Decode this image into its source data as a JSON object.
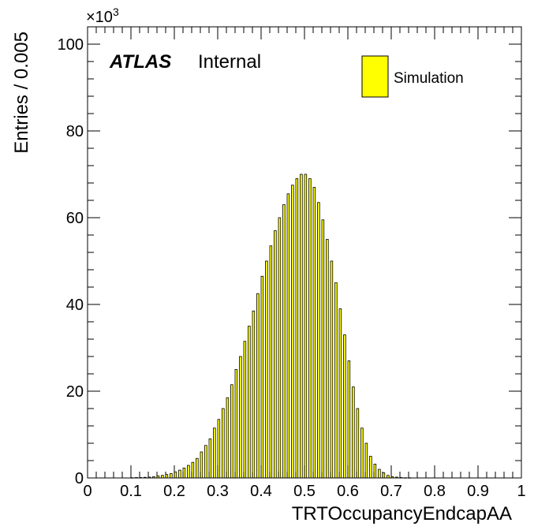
{
  "chart_data": {
    "type": "bar",
    "xlabel": "TRTOccupancyEndcapAA",
    "ylabel": "Entries / 0.005",
    "y_multiplier": "×10",
    "y_multiplier_exp": "3",
    "xlim": [
      0,
      1
    ],
    "ylim": [
      0,
      104
    ],
    "x_ticks": [
      "0",
      "0.1",
      "0.2",
      "0.3",
      "0.4",
      "0.5",
      "0.6",
      "0.7",
      "0.8",
      "0.9",
      "1"
    ],
    "y_ticks": [
      "0",
      "20",
      "40",
      "60",
      "80",
      "100"
    ],
    "atlas_label": "ATLAS",
    "atlas_status": "Internal",
    "legend_position": "top-right",
    "series": [
      {
        "name": "Simulation",
        "color": "#ffff00",
        "bin_width": 0.005,
        "x": [
          0.1,
          0.11,
          0.12,
          0.13,
          0.14,
          0.15,
          0.16,
          0.17,
          0.18,
          0.19,
          0.2,
          0.21,
          0.22,
          0.23,
          0.24,
          0.25,
          0.26,
          0.27,
          0.28,
          0.29,
          0.3,
          0.31,
          0.32,
          0.33,
          0.34,
          0.35,
          0.36,
          0.37,
          0.38,
          0.39,
          0.4,
          0.41,
          0.42,
          0.43,
          0.44,
          0.45,
          0.46,
          0.47,
          0.48,
          0.49,
          0.5,
          0.51,
          0.52,
          0.53,
          0.54,
          0.55,
          0.56,
          0.57,
          0.58,
          0.59,
          0.6,
          0.61,
          0.62,
          0.63,
          0.64,
          0.65,
          0.66,
          0.67,
          0.68,
          0.69,
          0.7,
          0.71,
          0.72,
          0.73,
          0.74
        ],
        "values": [
          0.05,
          0.1,
          0.1,
          0.15,
          0.2,
          0.3,
          0.5,
          0.6,
          0.8,
          1.0,
          1.4,
          1.8,
          2.3,
          2.9,
          3.6,
          4.5,
          6.0,
          7.5,
          9.0,
          11.5,
          13.5,
          16.0,
          18.5,
          21.5,
          25.0,
          28.0,
          31.5,
          35.0,
          38.5,
          42.5,
          46.5,
          50.0,
          53.5,
          57.0,
          60.0,
          63.0,
          65.5,
          67.5,
          69.0,
          70.0,
          70.0,
          69.0,
          67.0,
          63.5,
          59.5,
          55.0,
          50.0,
          45.0,
          39.0,
          33.0,
          27.0,
          21.0,
          16.0,
          11.5,
          8.0,
          5.0,
          3.2,
          2.0,
          1.2,
          0.6,
          0.3,
          0.2,
          0.1,
          0.05,
          0.05
        ]
      }
    ]
  }
}
